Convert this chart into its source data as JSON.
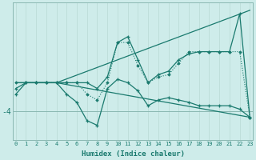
{
  "xlabel": "Humidex (Indice chaleur)",
  "bg_color": "#ceecea",
  "line_color": "#1a7a6e",
  "grid_color": "#b8d8d4",
  "axis_color": "#8ab8b2",
  "xmin": 0,
  "xmax": 23,
  "ylim": [
    -6.5,
    5.5
  ],
  "ytick_val": -4,
  "series": [
    {
      "x": [
        0,
        1,
        2,
        3,
        4,
        5,
        6,
        7,
        8,
        9,
        10,
        11,
        12,
        13,
        14,
        15,
        16,
        17,
        18,
        19,
        20,
        21,
        22,
        23
      ],
      "y": [
        -2.0,
        -1.5,
        -1.5,
        -1.5,
        -1.5,
        -2.5,
        -3.2,
        -4.8,
        -5.2,
        -2.0,
        -1.2,
        -1.5,
        -2.2,
        -3.5,
        -3.0,
        -2.8,
        -3.0,
        -3.2,
        -3.5,
        -3.5,
        -3.5,
        -3.5,
        -3.8,
        -4.5
      ],
      "marker": "+",
      "lw": 0.9
    },
    {
      "x": [
        0,
        1,
        2,
        3,
        4,
        5,
        6,
        7,
        8,
        9,
        10,
        11,
        12,
        13,
        14,
        15,
        16,
        17,
        18,
        19,
        20,
        21,
        22,
        23
      ],
      "y": [
        -2.5,
        -1.5,
        -1.5,
        -1.5,
        -1.5,
        -1.5,
        -1.5,
        -1.5,
        -2.0,
        -1.0,
        2.0,
        2.5,
        0.5,
        -1.5,
        -0.8,
        -0.5,
        0.5,
        1.0,
        1.2,
        1.2,
        1.2,
        1.2,
        4.5,
        -4.5
      ],
      "marker": "+",
      "lw": 0.9
    },
    {
      "x": [
        0,
        1,
        2,
        3,
        4,
        5,
        6,
        7,
        8,
        9,
        10,
        11,
        12,
        13,
        14,
        15,
        16,
        17,
        18,
        19,
        20,
        21,
        22,
        23
      ],
      "y": [
        -1.5,
        -1.5,
        -1.5,
        -1.5,
        -1.5,
        -1.5,
        -1.5,
        -2.5,
        -3.0,
        -1.5,
        2.0,
        2.0,
        0.0,
        -1.5,
        -1.0,
        -0.8,
        0.2,
        1.2,
        1.2,
        1.2,
        1.2,
        1.2,
        1.2,
        -4.5
      ],
      "marker": "D",
      "lw": 0.8,
      "linestyle": ":"
    },
    {
      "x": [
        0,
        4,
        23
      ],
      "y": [
        -1.5,
        -1.5,
        4.8
      ],
      "marker": null,
      "lw": 0.9,
      "linestyle": "-"
    },
    {
      "x": [
        0,
        4,
        23
      ],
      "y": [
        -1.5,
        -1.5,
        -4.5
      ],
      "marker": null,
      "lw": 0.9,
      "linestyle": "-"
    }
  ]
}
